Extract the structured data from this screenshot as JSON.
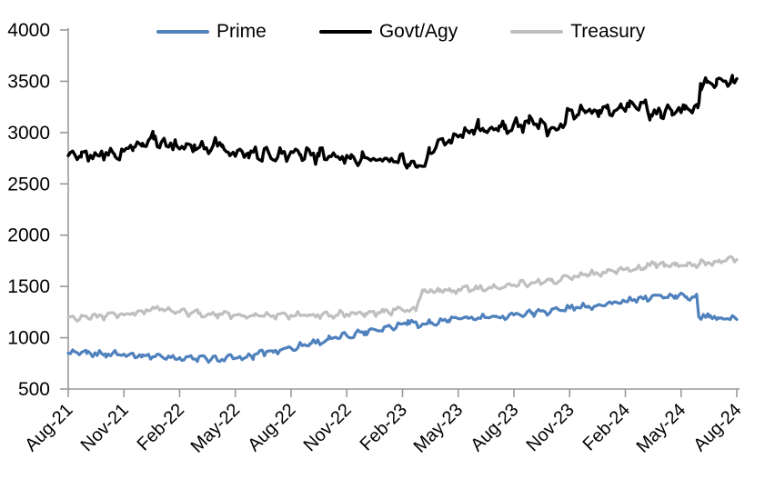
{
  "chart_data": {
    "type": "line",
    "title": "",
    "xlabel": "",
    "ylabel": "",
    "grid": false,
    "legend_position": "top",
    "ylim": [
      500,
      4000
    ],
    "y_ticks": [
      500,
      1000,
      1500,
      2000,
      2500,
      3000,
      3500,
      4000
    ],
    "x_tick_labels": [
      "Aug-21",
      "Nov-21",
      "Feb-22",
      "May-22",
      "Aug-22",
      "Nov-22",
      "Feb-23",
      "May-23",
      "Aug-23",
      "Nov-23",
      "Feb-24",
      "May-24",
      "Aug-24"
    ],
    "x_months_per_tick": 3,
    "x_range_months": [
      0,
      36
    ],
    "axis_color": "#999999",
    "tick_label_color": "#000000",
    "series": [
      {
        "name": "Prime",
        "color": "#4F81BD",
        "line_width": 3.2,
        "noise_amp": 4,
        "points": [
          [
            0,
            850
          ],
          [
            1,
            847
          ],
          [
            2,
            843
          ],
          [
            3,
            840
          ],
          [
            4,
            833
          ],
          [
            5,
            820
          ],
          [
            6,
            806
          ],
          [
            7,
            798
          ],
          [
            8,
            795
          ],
          [
            9,
            800
          ],
          [
            9.6,
            810
          ],
          [
            10,
            832
          ],
          [
            10.5,
            855
          ],
          [
            11,
            872
          ],
          [
            12,
            900
          ],
          [
            13,
            940
          ],
          [
            14,
            985
          ],
          [
            15,
            1020
          ],
          [
            16,
            1060
          ],
          [
            17,
            1100
          ],
          [
            18,
            1135
          ],
          [
            18.3,
            1168
          ],
          [
            18.8,
            1122
          ],
          [
            19.5,
            1142
          ],
          [
            20.5,
            1172
          ],
          [
            21.5,
            1192
          ],
          [
            22.2,
            1188
          ],
          [
            23,
            1205
          ],
          [
            24,
            1222
          ],
          [
            25,
            1242
          ],
          [
            26,
            1262
          ],
          [
            27,
            1288
          ],
          [
            28,
            1308
          ],
          [
            29,
            1330
          ],
          [
            30,
            1352
          ],
          [
            31,
            1383
          ],
          [
            31.8,
            1415
          ],
          [
            32.2,
            1393
          ],
          [
            32.7,
            1410
          ],
          [
            33.3,
            1398
          ],
          [
            33.85,
            1402
          ],
          [
            33.95,
            1208
          ],
          [
            34.5,
            1202
          ],
          [
            35,
            1196
          ],
          [
            35.5,
            1185
          ],
          [
            36,
            1178
          ]
        ]
      },
      {
        "name": "Govt/Agy",
        "color": "#000000",
        "line_width": 3.4,
        "noise_amp": 8,
        "points": [
          [
            0,
            2775
          ],
          [
            0.7,
            2762
          ],
          [
            1.2,
            2778
          ],
          [
            2,
            2790
          ],
          [
            2.5,
            2785
          ],
          [
            3,
            2820
          ],
          [
            3.5,
            2855
          ],
          [
            4,
            2895
          ],
          [
            4.6,
            2938
          ],
          [
            5,
            2900
          ],
          [
            5.3,
            2870
          ],
          [
            5.8,
            2890
          ],
          [
            6.3,
            2855
          ],
          [
            6.8,
            2880
          ],
          [
            7.3,
            2858
          ],
          [
            7.8,
            2872
          ],
          [
            8.3,
            2880
          ],
          [
            8.7,
            2775
          ],
          [
            9.2,
            2830
          ],
          [
            9.7,
            2800
          ],
          [
            10.5,
            2795
          ],
          [
            11.5,
            2798
          ],
          [
            12.5,
            2788
          ],
          [
            13.5,
            2772
          ],
          [
            14.5,
            2762
          ],
          [
            15.2,
            2748
          ],
          [
            15.8,
            2752
          ],
          [
            16.3,
            2728
          ],
          [
            16.8,
            2742
          ],
          [
            17.3,
            2718
          ],
          [
            17.8,
            2732
          ],
          [
            18.3,
            2688
          ],
          [
            18.8,
            2662
          ],
          [
            19.2,
            2672
          ],
          [
            19.45,
            2800
          ],
          [
            19.8,
            2855
          ],
          [
            20.2,
            2912
          ],
          [
            20.6,
            2898
          ],
          [
            21,
            2958
          ],
          [
            21.4,
            3028
          ],
          [
            21.8,
            3020
          ],
          [
            22.1,
            3048
          ],
          [
            22.4,
            3012
          ],
          [
            22.8,
            3052
          ],
          [
            23.2,
            3062
          ],
          [
            23.5,
            3038
          ],
          [
            24,
            3088
          ],
          [
            24.4,
            3068
          ],
          [
            24.8,
            3092
          ],
          [
            25.2,
            3082
          ],
          [
            25.6,
            3098
          ],
          [
            25.9,
            3008
          ],
          [
            26.4,
            3035
          ],
          [
            26.8,
            3140
          ],
          [
            27.05,
            3222
          ],
          [
            27.4,
            3170
          ],
          [
            27.8,
            3212
          ],
          [
            28.2,
            3188
          ],
          [
            28.6,
            3215
          ],
          [
            29,
            3240
          ],
          [
            29.4,
            3210
          ],
          [
            29.8,
            3245
          ],
          [
            30.2,
            3252
          ],
          [
            30.6,
            3235
          ],
          [
            31,
            3292
          ],
          [
            31.35,
            3172
          ],
          [
            31.9,
            3198
          ],
          [
            32.5,
            3212
          ],
          [
            33.2,
            3228
          ],
          [
            33.9,
            3242
          ],
          [
            34.05,
            3478
          ],
          [
            34.4,
            3490
          ],
          [
            34.9,
            3468
          ],
          [
            35.4,
            3502
          ],
          [
            35.8,
            3498
          ],
          [
            36,
            3525
          ]
        ]
      },
      {
        "name": "Treasury",
        "color": "#BFBFBF",
        "line_width": 3.2,
        "noise_amp": 4,
        "points": [
          [
            0,
            1200
          ],
          [
            1,
            1203
          ],
          [
            2,
            1208
          ],
          [
            3,
            1222
          ],
          [
            4,
            1252
          ],
          [
            4.6,
            1293
          ],
          [
            5.2,
            1268
          ],
          [
            6,
            1252
          ],
          [
            7,
            1238
          ],
          [
            8,
            1228
          ],
          [
            9,
            1220
          ],
          [
            10,
            1214
          ],
          [
            11,
            1212
          ],
          [
            12,
            1220
          ],
          [
            13,
            1218
          ],
          [
            14,
            1224
          ],
          [
            15,
            1230
          ],
          [
            16,
            1236
          ],
          [
            17,
            1252
          ],
          [
            18,
            1270
          ],
          [
            18.7,
            1280
          ],
          [
            19.1,
            1450
          ],
          [
            19.5,
            1468
          ],
          [
            20,
            1452
          ],
          [
            20.5,
            1462
          ],
          [
            21,
            1472
          ],
          [
            22,
            1482
          ],
          [
            23,
            1495
          ],
          [
            24,
            1515
          ],
          [
            25,
            1535
          ],
          [
            26,
            1558
          ],
          [
            27,
            1585
          ],
          [
            28,
            1615
          ],
          [
            29,
            1645
          ],
          [
            30,
            1668
          ],
          [
            31,
            1682
          ],
          [
            31.6,
            1728
          ],
          [
            32.1,
            1694
          ],
          [
            32.7,
            1706
          ],
          [
            33.3,
            1700
          ],
          [
            34,
            1722
          ],
          [
            35,
            1742
          ],
          [
            36,
            1762
          ]
        ]
      }
    ]
  },
  "legend": {
    "items": [
      {
        "label": "Prime"
      },
      {
        "label": "Govt/Agy"
      },
      {
        "label": "Treasury"
      }
    ]
  }
}
